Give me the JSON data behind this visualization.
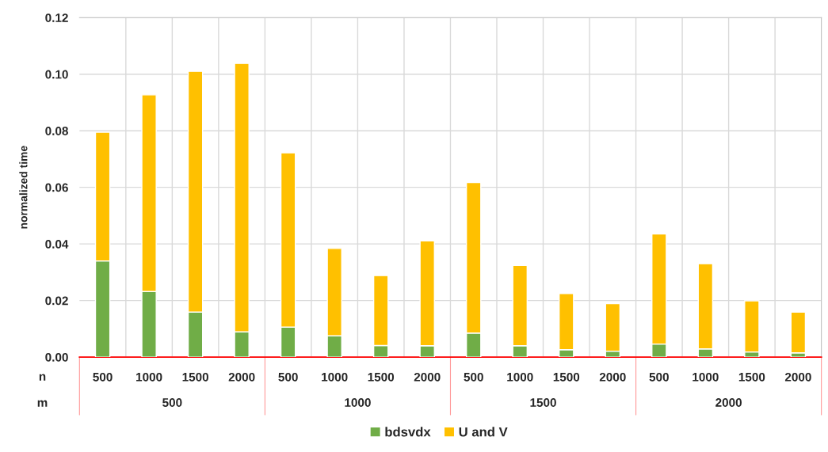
{
  "chart_data": {
    "type": "bar",
    "stacked": true,
    "ylabel": "normalized time",
    "categories": [
      "500",
      "1000",
      "1500",
      "2000",
      "500",
      "1000",
      "1500",
      "2000",
      "500",
      "1000",
      "1500",
      "2000",
      "500",
      "1000",
      "1500",
      "2000"
    ],
    "annotations": [
      "n",
      "m",
      "500",
      "1000",
      "1500",
      "2000"
    ],
    "series": [
      {
        "name": "bdsvdx",
        "color": "#70ad47",
        "values": [
          0.034,
          0.0232,
          0.0159,
          0.0089,
          0.0106,
          0.0075,
          0.0041,
          0.004,
          0.0085,
          0.004,
          0.0026,
          0.0021,
          0.0046,
          0.0029,
          0.0018,
          0.0015
        ]
      },
      {
        "name": "U and V",
        "color": "#ffc000",
        "values": [
          0.0455,
          0.0695,
          0.0851,
          0.0949,
          0.0616,
          0.0309,
          0.0247,
          0.0371,
          0.0532,
          0.0284,
          0.0199,
          0.0168,
          0.0389,
          0.0301,
          0.0181,
          0.0144
        ]
      }
    ],
    "ylim": [
      0,
      0.12
    ],
    "yticks": [
      {
        "value": 0,
        "label": "0.00"
      },
      0.02,
      0.04,
      0.06,
      0.08,
      {
        "value": 0.1,
        "label": "0.10"
      },
      0.12
    ],
    "grid": true,
    "legend": "bottom"
  }
}
